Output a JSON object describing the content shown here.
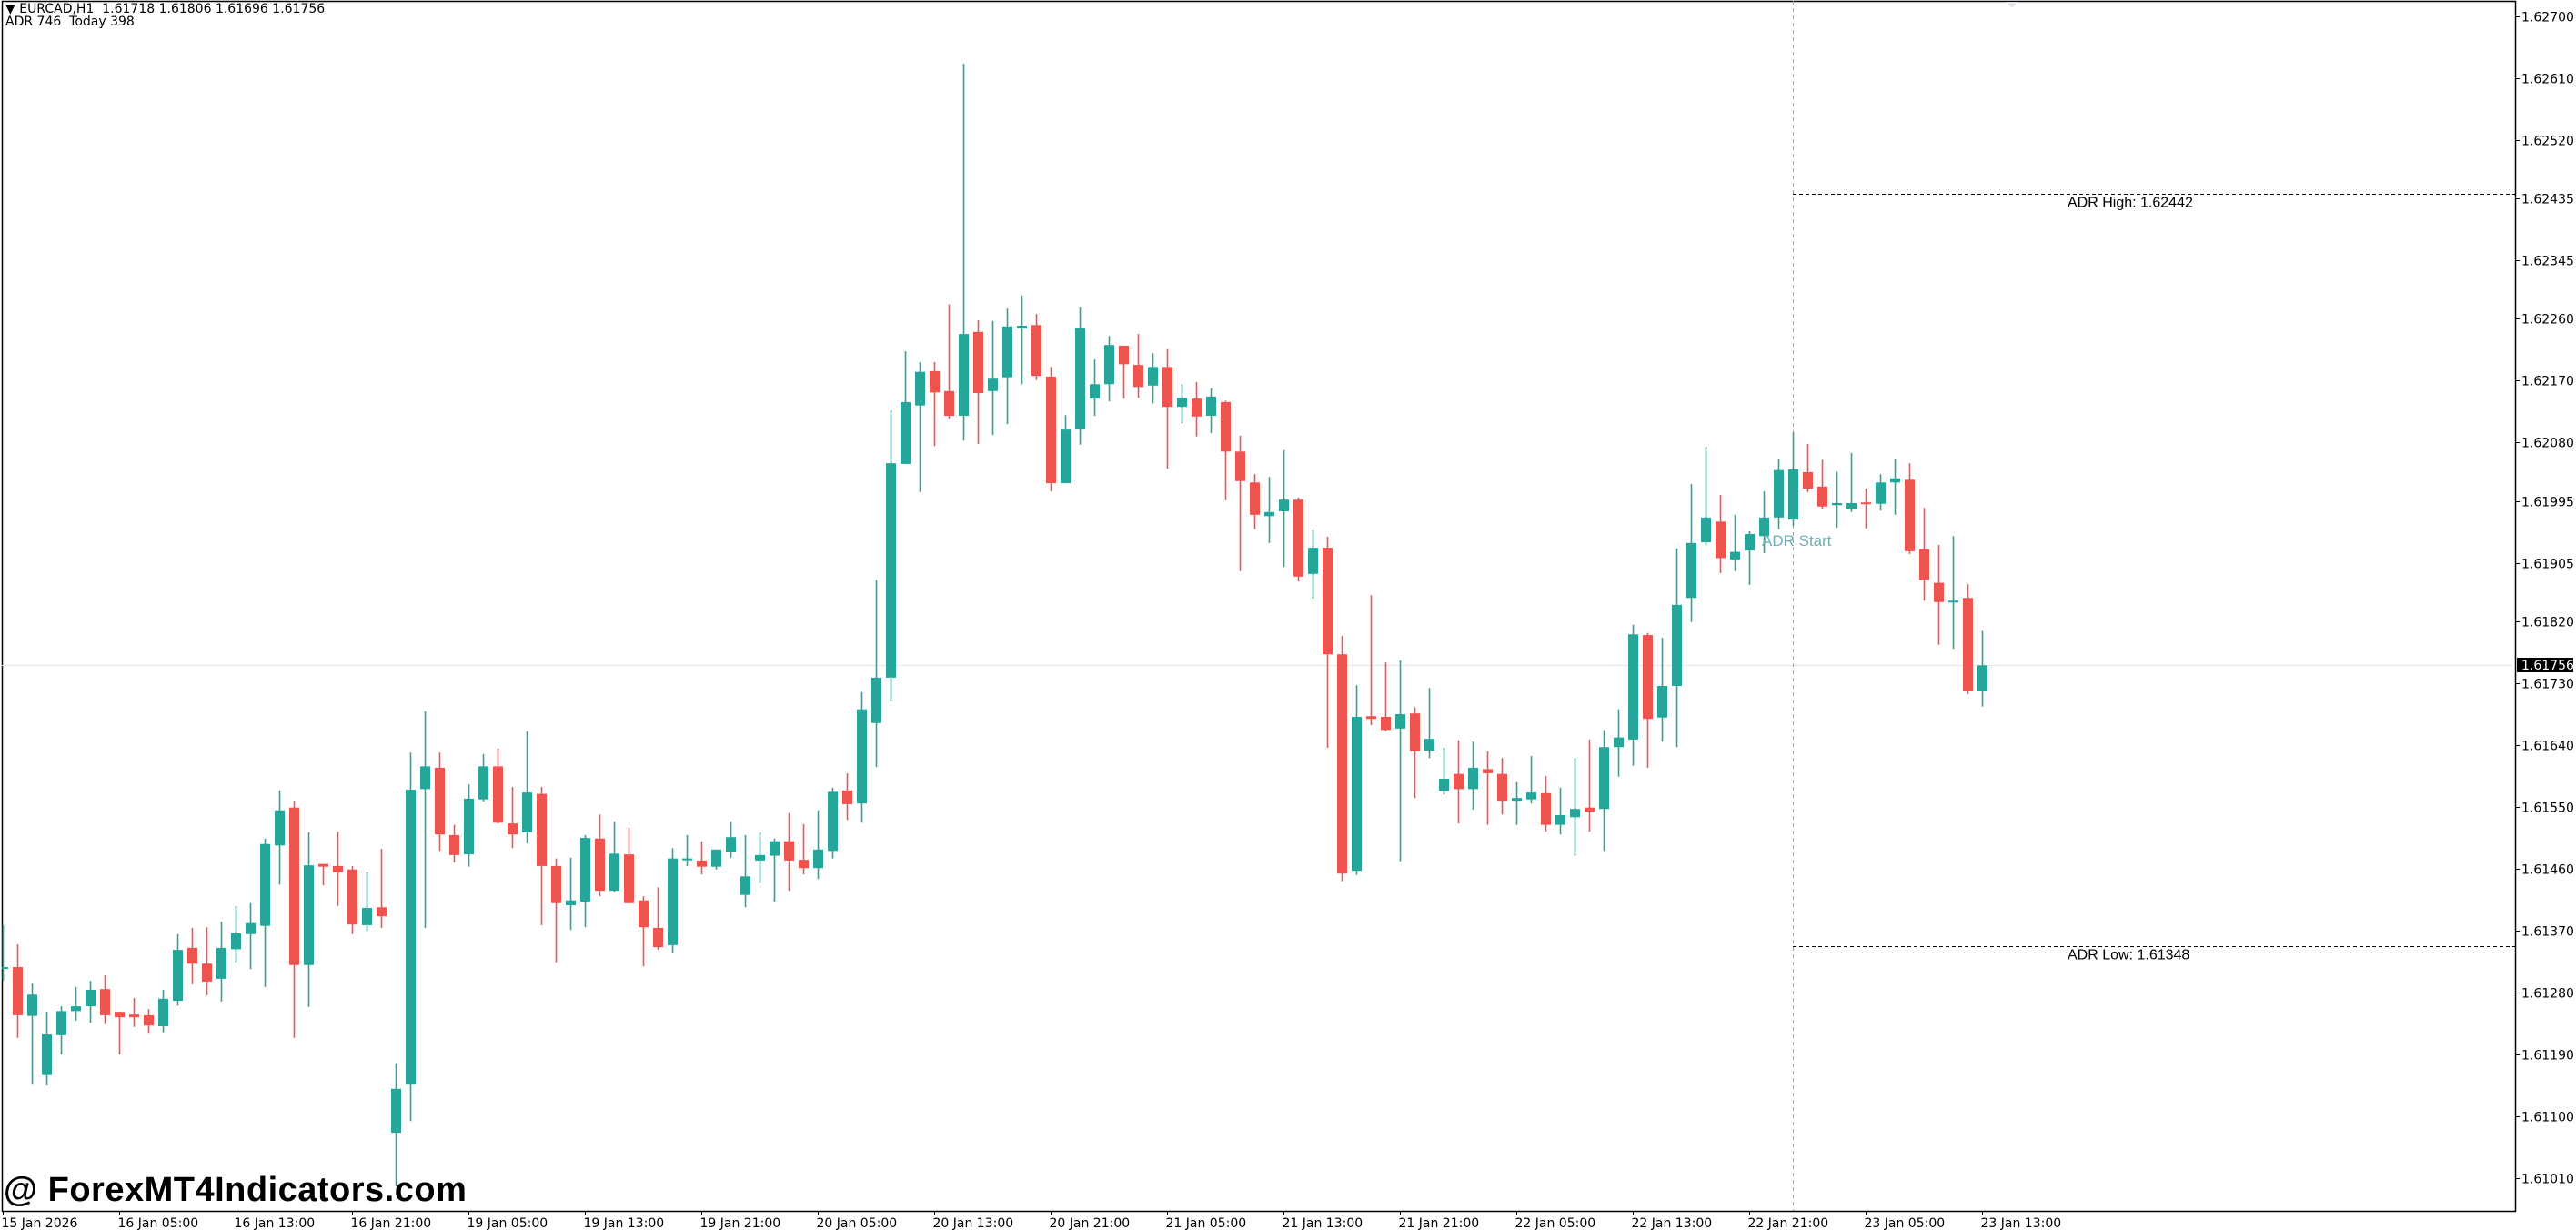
{
  "header": {
    "symbol_line": "▼ EURCAD,H1  1.61718 1.61806 1.61696 1.61756",
    "indicator_line": "ADR 746  Today 398"
  },
  "watermark": "@ ForexMT4Indicators.com",
  "colors": {
    "bull": "#26a69a",
    "bear": "#ef5350",
    "frame": "#000000",
    "bid_line": "#e6e6e6",
    "adr_line": "#000000",
    "adr_vertical": "#a0a0a0",
    "adr_start_text": "#6fb0b6",
    "price_tag_bg": "#000000",
    "price_tag_text": "#ffffff"
  },
  "chart_data": {
    "type": "candlestick",
    "title": "EURCAD,H1",
    "symbol": "EURCAD",
    "timeframe": "H1",
    "last_bar": {
      "open": 1.61718,
      "high": 1.61806,
      "low": 1.61696,
      "close": 1.61756
    },
    "current_price": 1.61756,
    "current_price_label": "1.61756",
    "indicator": {
      "name": "ADR",
      "adr": 746,
      "today": 398
    },
    "adr_high": {
      "label": "ADR High: 1.62442",
      "price": 1.62442
    },
    "adr_low": {
      "label": "ADR Low: 1.61348",
      "price": 1.61348
    },
    "adr_start": {
      "label": "ADR Start",
      "bar_index": 123
    },
    "y_axis": {
      "ticks": [
        "1.62700",
        "1.62610",
        "1.62520",
        "1.62435",
        "1.62345",
        "1.62260",
        "1.62170",
        "1.62080",
        "1.61995",
        "1.61905",
        "1.61820",
        "1.61730",
        "1.61640",
        "1.61550",
        "1.61460",
        "1.61370",
        "1.61280",
        "1.61190",
        "1.61100",
        "1.61010"
      ],
      "range": [
        1.6098,
        1.6272
      ]
    },
    "x_axis": {
      "labels": [
        {
          "text": "15 Jan 2026",
          "bar_index": 0
        },
        {
          "text": "16 Jan 05:00",
          "bar_index": 8
        },
        {
          "text": "16 Jan 13:00",
          "bar_index": 16
        },
        {
          "text": "16 Jan 21:00",
          "bar_index": 24
        },
        {
          "text": "19 Jan 05:00",
          "bar_index": 32
        },
        {
          "text": "19 Jan 13:00",
          "bar_index": 40
        },
        {
          "text": "19 Jan 21:00",
          "bar_index": 48
        },
        {
          "text": "20 Jan 05:00",
          "bar_index": 56
        },
        {
          "text": "20 Jan 13:00",
          "bar_index": 64
        },
        {
          "text": "20 Jan 21:00",
          "bar_index": 72
        },
        {
          "text": "21 Jan 05:00",
          "bar_index": 80
        },
        {
          "text": "21 Jan 13:00",
          "bar_index": 88
        },
        {
          "text": "21 Jan 21:00",
          "bar_index": 96
        },
        {
          "text": "22 Jan 05:00",
          "bar_index": 104
        },
        {
          "text": "22 Jan 13:00",
          "bar_index": 112
        },
        {
          "text": "22 Jan 21:00",
          "bar_index": 120
        },
        {
          "text": "23 Jan 05:00",
          "bar_index": 128
        },
        {
          "text": "23 Jan 13:00",
          "bar_index": 136
        }
      ]
    },
    "grid": false,
    "ohlc_columns": [
      "open",
      "high",
      "low",
      "close"
    ],
    "candles": [
      [
        1.61316,
        1.61378,
        1.61297,
        1.61317
      ],
      [
        1.61317,
        1.6135,
        1.61214,
        1.61247
      ],
      [
        1.61246,
        1.61293,
        1.61146,
        1.61277
      ],
      [
        1.6116,
        1.61252,
        1.61145,
        1.61219
      ],
      [
        1.61218,
        1.6126,
        1.6119,
        1.61253
      ],
      [
        1.61253,
        1.61288,
        1.61239,
        1.6126
      ],
      [
        1.6126,
        1.61297,
        1.61236,
        1.61284
      ],
      [
        1.61285,
        1.61305,
        1.61234,
        1.61247
      ],
      [
        1.61252,
        1.61252,
        1.6119,
        1.61244
      ],
      [
        1.61248,
        1.61272,
        1.6123,
        1.61244
      ],
      [
        1.61247,
        1.61256,
        1.6122,
        1.61232
      ],
      [
        1.61231,
        1.61284,
        1.61222,
        1.61271
      ],
      [
        1.61268,
        1.61365,
        1.61261,
        1.61342
      ],
      [
        1.61345,
        1.61374,
        1.61292,
        1.61322
      ],
      [
        1.61322,
        1.61375,
        1.61276,
        1.61296
      ],
      [
        1.613,
        1.61383,
        1.61267,
        1.61345
      ],
      [
        1.61343,
        1.61406,
        1.61324,
        1.61366
      ],
      [
        1.61365,
        1.6141,
        1.61314,
        1.61381
      ],
      [
        1.61377,
        1.61504,
        1.61288,
        1.61496
      ],
      [
        1.61494,
        1.61574,
        1.61437,
        1.61545
      ],
      [
        1.61549,
        1.61559,
        1.61214,
        1.6132
      ],
      [
        1.6132,
        1.61513,
        1.61259,
        1.61465
      ],
      [
        1.61467,
        1.61467,
        1.61436,
        1.61463
      ],
      [
        1.61464,
        1.61514,
        1.61406,
        1.61455
      ],
      [
        1.61459,
        1.61464,
        1.61365,
        1.61379
      ],
      [
        1.61378,
        1.61455,
        1.61369,
        1.61403
      ],
      [
        1.61404,
        1.61489,
        1.61374,
        1.61391
      ],
      [
        1.61076,
        1.61177,
        1.60998,
        1.6114
      ],
      [
        1.61146,
        1.61629,
        1.61093,
        1.61575
      ],
      [
        1.61576,
        1.61689,
        1.61374,
        1.61609
      ],
      [
        1.61607,
        1.61629,
        1.61486,
        1.6151
      ],
      [
        1.61509,
        1.61524,
        1.61469,
        1.6148
      ],
      [
        1.61481,
        1.61583,
        1.61463,
        1.61562
      ],
      [
        1.61561,
        1.61627,
        1.61558,
        1.61609
      ],
      [
        1.61609,
        1.61635,
        1.61526,
        1.61527
      ],
      [
        1.61526,
        1.61579,
        1.6149,
        1.6151
      ],
      [
        1.61513,
        1.6166,
        1.61497,
        1.61571
      ],
      [
        1.61569,
        1.61579,
        1.61378,
        1.61464
      ],
      [
        1.61464,
        1.61475,
        1.61324,
        1.6141
      ],
      [
        1.61407,
        1.61476,
        1.61371,
        1.61414
      ],
      [
        1.61412,
        1.61509,
        1.61375,
        1.61505
      ],
      [
        1.61504,
        1.61539,
        1.6142,
        1.61428
      ],
      [
        1.61428,
        1.61529,
        1.61426,
        1.61482
      ],
      [
        1.61481,
        1.6152,
        1.6141,
        1.6141
      ],
      [
        1.61414,
        1.6142,
        1.61318,
        1.61375
      ],
      [
        1.61374,
        1.61433,
        1.61342,
        1.61346
      ],
      [
        1.61349,
        1.6149,
        1.61337,
        1.61475
      ],
      [
        1.61473,
        1.61509,
        1.61464,
        1.61475
      ],
      [
        1.61472,
        1.615,
        1.61452,
        1.61463
      ],
      [
        1.61463,
        1.61488,
        1.61459,
        1.61488
      ],
      [
        1.61485,
        1.61529,
        1.61476,
        1.61506
      ],
      [
        1.61422,
        1.61509,
        1.61404,
        1.61449
      ],
      [
        1.61472,
        1.61513,
        1.61439,
        1.6148
      ],
      [
        1.61479,
        1.61504,
        1.61412,
        1.615
      ],
      [
        1.615,
        1.61541,
        1.61428,
        1.61472
      ],
      [
        1.61473,
        1.61525,
        1.61452,
        1.61461
      ],
      [
        1.61461,
        1.61545,
        1.61445,
        1.61488
      ],
      [
        1.61486,
        1.61578,
        1.61475,
        1.61572
      ],
      [
        1.61574,
        1.61599,
        1.61531,
        1.61554
      ],
      [
        1.61555,
        1.61717,
        1.61527,
        1.61692
      ],
      [
        1.61672,
        1.6188,
        1.61608,
        1.61738
      ],
      [
        1.61738,
        1.62127,
        1.61703,
        1.6205
      ],
      [
        1.62049,
        1.62213,
        1.62049,
        1.62139
      ],
      [
        1.62134,
        1.62197,
        1.62008,
        1.62183
      ],
      [
        1.62184,
        1.62197,
        1.62075,
        1.62153
      ],
      [
        1.62155,
        1.62281,
        1.62114,
        1.62119
      ],
      [
        1.62119,
        1.62631,
        1.62083,
        1.62238
      ],
      [
        1.62241,
        1.62258,
        1.62078,
        1.62152
      ],
      [
        1.62155,
        1.62257,
        1.62091,
        1.62173
      ],
      [
        1.62175,
        1.62275,
        1.62107,
        1.62249
      ],
      [
        1.62246,
        1.62294,
        1.62165,
        1.6225
      ],
      [
        1.62251,
        1.62267,
        1.62171,
        1.62177
      ],
      [
        1.62176,
        1.6219,
        1.62009,
        1.62021
      ],
      [
        1.62021,
        1.6212,
        1.62021,
        1.62099
      ],
      [
        1.62099,
        1.62277,
        1.62077,
        1.62247
      ],
      [
        1.62144,
        1.62201,
        1.62119,
        1.62165
      ],
      [
        1.62165,
        1.62235,
        1.6214,
        1.62222
      ],
      [
        1.62221,
        1.62221,
        1.62144,
        1.62194
      ],
      [
        1.62193,
        1.62238,
        1.62145,
        1.62161
      ],
      [
        1.62163,
        1.6221,
        1.62137,
        1.6219
      ],
      [
        1.6219,
        1.62216,
        1.62042,
        1.62132
      ],
      [
        1.62132,
        1.62165,
        1.62108,
        1.62145
      ],
      [
        1.62144,
        1.62168,
        1.62089,
        1.62118
      ],
      [
        1.62119,
        1.62159,
        1.62094,
        1.62147
      ],
      [
        1.62139,
        1.62141,
        1.61996,
        1.62067
      ],
      [
        1.62067,
        1.6209,
        1.61893,
        1.62024
      ],
      [
        1.62022,
        1.62034,
        1.61954,
        1.61975
      ],
      [
        1.61973,
        1.6203,
        1.61934,
        1.61979
      ],
      [
        1.6198,
        1.62069,
        1.61899,
        1.61997
      ],
      [
        1.61997,
        1.62,
        1.61878,
        1.61885
      ],
      [
        1.61889,
        1.61952,
        1.61853,
        1.61927
      ],
      [
        1.61927,
        1.61943,
        1.61636,
        1.61772
      ],
      [
        1.61772,
        1.61799,
        1.61442,
        1.61453
      ],
      [
        1.61457,
        1.61727,
        1.61451,
        1.61681
      ],
      [
        1.61682,
        1.61858,
        1.61669,
        1.61678
      ],
      [
        1.61681,
        1.6176,
        1.6166,
        1.61662
      ],
      [
        1.61664,
        1.61763,
        1.61471,
        1.61685
      ],
      [
        1.61686,
        1.61695,
        1.61563,
        1.61631
      ],
      [
        1.61632,
        1.61723,
        1.61621,
        1.61649
      ],
      [
        1.61573,
        1.61636,
        1.61568,
        1.61591
      ],
      [
        1.61598,
        1.61647,
        1.61526,
        1.61576
      ],
      [
        1.61576,
        1.61645,
        1.61546,
        1.61607
      ],
      [
        1.61605,
        1.61631,
        1.61524,
        1.61599
      ],
      [
        1.61598,
        1.61621,
        1.61539,
        1.61559
      ],
      [
        1.61559,
        1.61586,
        1.61524,
        1.61563
      ],
      [
        1.61561,
        1.61624,
        1.61555,
        1.61571
      ],
      [
        1.6157,
        1.61595,
        1.61514,
        1.61524
      ],
      [
        1.61524,
        1.61578,
        1.6151,
        1.61538
      ],
      [
        1.61535,
        1.61621,
        1.61479,
        1.61547
      ],
      [
        1.61549,
        1.61648,
        1.61514,
        1.61543
      ],
      [
        1.61547,
        1.61662,
        1.61486,
        1.61637
      ],
      [
        1.61637,
        1.61692,
        1.61594,
        1.61651
      ],
      [
        1.61648,
        1.61815,
        1.6161,
        1.61801
      ],
      [
        1.618,
        1.61803,
        1.61607,
        1.61678
      ],
      [
        1.6168,
        1.61796,
        1.61645,
        1.61726
      ],
      [
        1.61726,
        1.61926,
        1.61637,
        1.61844
      ],
      [
        1.61854,
        1.6202,
        1.61819,
        1.61934
      ],
      [
        1.61935,
        1.62074,
        1.6193,
        1.61971
      ],
      [
        1.61965,
        1.62004,
        1.6189,
        1.61912
      ],
      [
        1.6191,
        1.61975,
        1.61893,
        1.61921
      ],
      [
        1.61923,
        1.61951,
        1.61873,
        1.61947
      ],
      [
        1.61944,
        1.62009,
        1.61919,
        1.61971
      ],
      [
        1.61971,
        1.62057,
        1.61954,
        1.6204
      ],
      [
        1.61968,
        1.62095,
        1.61959,
        1.62041
      ],
      [
        1.62037,
        1.62078,
        1.62008,
        1.62013
      ],
      [
        1.62016,
        1.62055,
        1.61983,
        1.61987
      ],
      [
        1.61989,
        1.62038,
        1.61956,
        1.61992
      ],
      [
        1.61984,
        1.62065,
        1.61979,
        1.61992
      ],
      [
        1.61993,
        1.62013,
        1.61955,
        1.61991
      ],
      [
        1.61991,
        1.62034,
        1.61981,
        1.62022
      ],
      [
        1.62022,
        1.62057,
        1.61975,
        1.62028
      ],
      [
        1.62026,
        1.6205,
        1.61918,
        1.61922
      ],
      [
        1.61925,
        1.61985,
        1.6185,
        1.6188
      ],
      [
        1.61876,
        1.61931,
        1.61786,
        1.61848
      ],
      [
        1.61849,
        1.61944,
        1.6178,
        1.6185
      ],
      [
        1.61854,
        1.61874,
        1.61714,
        1.61718
      ],
      [
        1.61718,
        1.61806,
        1.61696,
        1.61756
      ]
    ]
  }
}
